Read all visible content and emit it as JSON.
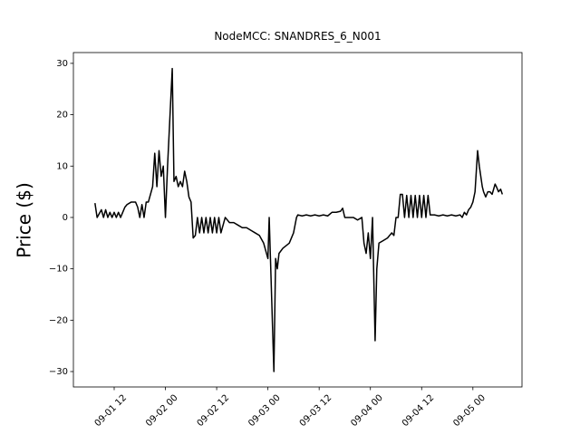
{
  "chart_data": {
    "type": "line",
    "title": "NodeMCC: SNANDRES_6_N001",
    "y_label": "Price ($)",
    "color": "#000000",
    "xlim": [
      2.45,
      107.5
    ],
    "ylim": [
      -33,
      32.1
    ],
    "xticks": [
      {
        "value": 12,
        "label": "09-01 12"
      },
      {
        "value": 24,
        "label": "09-02 00"
      },
      {
        "value": 36,
        "label": "09-02 12"
      },
      {
        "value": 48,
        "label": "09-03 00"
      },
      {
        "value": 60,
        "label": "09-03 12"
      },
      {
        "value": 72,
        "label": "09-04 00"
      },
      {
        "value": 84,
        "label": "09-04 12"
      },
      {
        "value": 96,
        "label": "09-05 00"
      }
    ],
    "yticks": [
      {
        "value": -30,
        "label": "−30"
      },
      {
        "value": -20,
        "label": "−20"
      },
      {
        "value": -10,
        "label": "−10"
      },
      0,
      10,
      20,
      30
    ],
    "x": [
      7.5,
      8,
      9,
      9.5,
      10,
      10.5,
      11,
      11.5,
      12,
      12.5,
      13,
      13.5,
      14,
      14.5,
      15,
      16,
      17,
      17.5,
      18,
      18.5,
      19,
      19.5,
      20,
      21,
      21.5,
      22,
      22.5,
      23,
      23.5,
      24,
      24.5,
      25.6,
      26,
      26.5,
      27,
      27.5,
      28,
      28.5,
      29,
      29.5,
      30,
      30.5,
      31,
      31.5,
      32,
      32.5,
      33,
      33.5,
      34,
      34.5,
      35,
      35.5,
      36,
      36.5,
      37,
      38,
      39,
      40,
      41,
      42,
      43,
      44,
      45,
      46,
      47,
      48,
      48.3,
      49.4,
      49.8,
      50.2,
      50.6,
      51.5,
      53,
      54,
      54.7,
      55,
      56,
      57,
      58,
      59,
      60,
      61,
      62,
      63,
      64,
      65,
      65.5,
      66,
      67,
      68,
      69,
      70,
      70.5,
      71,
      71.5,
      72,
      72.5,
      73.1,
      73.5,
      74,
      75,
      76,
      77,
      77.5,
      78,
      78.5,
      79,
      79.5,
      80,
      80.5,
      81,
      81.5,
      82,
      82.5,
      83,
      83.5,
      84,
      84.5,
      85,
      85.5,
      86,
      87,
      88,
      89,
      90,
      91,
      92,
      93,
      93.5,
      94,
      94.5,
      95,
      95.5,
      96,
      96.5,
      97.1,
      97.5,
      98.2,
      98.5,
      99,
      99.5,
      100,
      100.5,
      101.2,
      101.5,
      102,
      102.5,
      102.9
    ],
    "values": [
      2.8,
      0,
      1.5,
      0,
      1.5,
      0,
      1,
      0,
      1,
      0,
      1,
      0,
      1,
      2,
      2.5,
      3,
      3,
      2,
      0,
      2.5,
      0,
      3,
      3,
      6,
      12.5,
      6,
      13,
      8,
      10,
      0,
      10,
      29,
      7,
      8,
      6,
      7,
      6,
      9,
      7,
      4,
      3,
      -4,
      -3.5,
      0,
      -3,
      0,
      -3,
      0,
      -3,
      0,
      -3,
      0,
      -3,
      0,
      -3,
      0,
      -1,
      -1,
      -1.5,
      -2,
      -2,
      -2.5,
      -3,
      -3.5,
      -5,
      -8,
      0,
      -30,
      -8,
      -10,
      -7,
      -6,
      -5,
      -3,
      0,
      0.5,
      0.3,
      0.5,
      0.3,
      0.5,
      0.3,
      0.5,
      0.3,
      1,
      1,
      1.2,
      1.8,
      0,
      0,
      0,
      -0.5,
      0,
      -5,
      -7,
      -3,
      -8,
      0,
      -24,
      -10,
      -5,
      -4.5,
      -4,
      -3,
      -3.5,
      0,
      0,
      4.5,
      4.5,
      0,
      4.3,
      0,
      4.3,
      0,
      4.3,
      0,
      4.3,
      0,
      4.3,
      0,
      4.3,
      0.5,
      0.5,
      0.3,
      0.5,
      0.3,
      0.5,
      0.3,
      0.5,
      0,
      1,
      0.5,
      1.5,
      2,
      3,
      5,
      13,
      10,
      6,
      5,
      4,
      5,
      5,
      4.5,
      6.5,
      6,
      5,
      5.5,
      4.5
    ]
  }
}
